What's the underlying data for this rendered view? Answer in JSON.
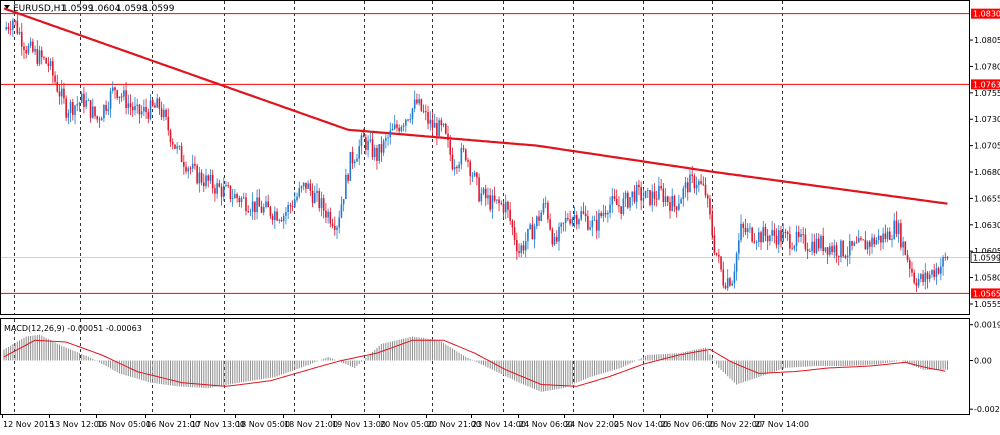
{
  "symbol_header": "EURUSD,H1",
  "ohlc": {
    "open": "1.0599",
    "high": "1.0604",
    "low": "1.0598",
    "close": "1.0599"
  },
  "colors": {
    "bull": "#1e7bd1",
    "bear": "#e0142a",
    "ma": "#e0141e",
    "level": "#ff0000",
    "level_label_bg": "#ff0000",
    "price_label_bg": "#ffffff",
    "grid": "#000000",
    "macd_hist": "#8c8c8c",
    "macd_signal": "#e0141e"
  },
  "chart_data": [
    {
      "type": "candlestick",
      "title": "EURUSD,H1",
      "ylim": [
        1.05455,
        1.0842
      ],
      "y_ticks": [
        "1.0805",
        "1.0780",
        "1.0755",
        "1.0730",
        "1.0705",
        "1.0680",
        "1.0655",
        "1.0630",
        "1.0605",
        "1.0580",
        "1.0555"
      ],
      "x_ticks": [
        "12 Nov 2015",
        "13 Nov 12:00",
        "16 Nov 05:00",
        "16 Nov 21:00",
        "17 Nov 13:00",
        "18 Nov 05:00",
        "18 Nov 21:00",
        "19 Nov 13:00",
        "20 Nov 05:00",
        "20 Nov 21:00",
        "23 Nov 14:00",
        "24 Nov 06:00",
        "24 Nov 22:00",
        "25 Nov 14:00",
        "26 Nov 06:00",
        "26 Nov 22:00",
        "27 Nov 14:00"
      ],
      "current_price": "1.0599",
      "levels": [
        {
          "value": 1.083,
          "label": "1.0830"
        },
        {
          "value": 1.0763,
          "label": "1.0763"
        },
        {
          "value": 1.0565,
          "label": "1.0565"
        }
      ],
      "path_keypoints": [
        [
          0,
          1.0815
        ],
        [
          4,
          1.0825
        ],
        [
          10,
          1.0798
        ],
        [
          20,
          1.0782
        ],
        [
          28,
          1.074
        ],
        [
          36,
          1.0748
        ],
        [
          42,
          1.073
        ],
        [
          50,
          1.076
        ],
        [
          60,
          1.0735
        ],
        [
          70,
          1.0742
        ],
        [
          78,
          1.07
        ],
        [
          86,
          1.0678
        ],
        [
          96,
          1.0665
        ],
        [
          106,
          1.0655
        ],
        [
          116,
          1.0645
        ],
        [
          126,
          1.064
        ],
        [
          136,
          1.0668
        ],
        [
          144,
          1.0645
        ],
        [
          150,
          1.0632
        ],
        [
          156,
          1.069
        ],
        [
          162,
          1.071
        ],
        [
          168,
          1.0695
        ],
        [
          174,
          1.0715
        ],
        [
          180,
          1.073
        ],
        [
          186,
          1.0745
        ],
        [
          192,
          1.0725
        ],
        [
          198,
          1.0718
        ],
        [
          202,
          1.069
        ],
        [
          208,
          1.0698
        ],
        [
          214,
          1.066
        ],
        [
          220,
          1.065
        ],
        [
          226,
          1.0648
        ],
        [
          232,
          1.0605
        ],
        [
          238,
          1.0625
        ],
        [
          244,
          1.065
        ],
        [
          248,
          1.061
        ],
        [
          254,
          1.0638
        ],
        [
          260,
          1.064
        ],
        [
          266,
          1.0628
        ],
        [
          272,
          1.065
        ],
        [
          278,
          1.0648
        ],
        [
          284,
          1.066
        ],
        [
          290,
          1.0655
        ],
        [
          296,
          1.066
        ],
        [
          302,
          1.0648
        ],
        [
          308,
          1.0668
        ],
        [
          312,
          1.0672
        ],
        [
          316,
          1.066
        ],
        [
          320,
          1.061
        ],
        [
          324,
          1.0578
        ],
        [
          328,
          1.058
        ],
        [
          332,
          1.0625
        ],
        [
          340,
          1.062
        ],
        [
          348,
          1.062
        ],
        [
          356,
          1.0615
        ],
        [
          362,
          1.0612
        ],
        [
          368,
          1.0612
        ],
        [
          374,
          1.0608
        ],
        [
          380,
          1.0605
        ],
        [
          386,
          1.061
        ],
        [
          392,
          1.0615
        ],
        [
          398,
          1.062
        ],
        [
          402,
          1.063
        ],
        [
          406,
          1.0605
        ],
        [
          410,
          1.058
        ],
        [
          414,
          1.0577
        ],
        [
          418,
          1.0585
        ],
        [
          422,
          1.0592
        ],
        [
          425,
          1.0599
        ]
      ],
      "ma_keypoints": [
        [
          0,
          1.0835
        ],
        [
          155,
          1.072
        ],
        [
          240,
          1.0705
        ],
        [
          320,
          1.068
        ],
        [
          425,
          1.065
        ]
      ]
    },
    {
      "type": "macd",
      "label": "MACD(12,26,9) -0.00051 -0.00063",
      "ylim": [
        -0.0029,
        0.00225
      ],
      "y_ticks": [
        "0.00194",
        "0.00",
        "-0.00264"
      ],
      "hist_keypoints": [
        [
          0,
          0.0006
        ],
        [
          10,
          0.0013
        ],
        [
          16,
          0.0014
        ],
        [
          26,
          0.0008
        ],
        [
          40,
          0.0001
        ],
        [
          52,
          -0.0007
        ],
        [
          66,
          -0.0012
        ],
        [
          78,
          -0.0014
        ],
        [
          92,
          -0.0015
        ],
        [
          106,
          -0.0012
        ],
        [
          122,
          -0.0009
        ],
        [
          138,
          -0.0002
        ],
        [
          146,
          0.0002
        ],
        [
          158,
          -0.0004
        ],
        [
          170,
          0.0009
        ],
        [
          184,
          0.0013
        ],
        [
          196,
          0.0011
        ],
        [
          208,
          0.0002
        ],
        [
          220,
          -0.0005
        ],
        [
          232,
          -0.0012
        ],
        [
          242,
          -0.0017
        ],
        [
          252,
          -0.0015
        ],
        [
          264,
          -0.0009
        ],
        [
          278,
          -0.0004
        ],
        [
          290,
          0.0003
        ],
        [
          304,
          0.0004
        ],
        [
          316,
          0.0007
        ],
        [
          322,
          -0.0004
        ],
        [
          330,
          -0.0013
        ],
        [
          340,
          -0.0009
        ],
        [
          352,
          -0.0004
        ],
        [
          366,
          -0.0003
        ],
        [
          380,
          -0.0003
        ],
        [
          394,
          -0.0002
        ],
        [
          404,
          0.0
        ],
        [
          414,
          -0.0005
        ],
        [
          425,
          -0.0005
        ]
      ],
      "signal_keypoints": [
        [
          0,
          0.0002
        ],
        [
          14,
          0.0011
        ],
        [
          28,
          0.001
        ],
        [
          44,
          0.0003
        ],
        [
          60,
          -0.0006
        ],
        [
          80,
          -0.0012
        ],
        [
          100,
          -0.0014
        ],
        [
          120,
          -0.0011
        ],
        [
          140,
          -0.0004
        ],
        [
          152,
          0.0
        ],
        [
          168,
          0.0004
        ],
        [
          184,
          0.0011
        ],
        [
          198,
          0.0011
        ],
        [
          212,
          0.0004
        ],
        [
          226,
          -0.0005
        ],
        [
          242,
          -0.0013
        ],
        [
          258,
          -0.0014
        ],
        [
          272,
          -0.0009
        ],
        [
          288,
          -0.0002
        ],
        [
          304,
          0.0003
        ],
        [
          318,
          0.0006
        ],
        [
          328,
          -0.0001
        ],
        [
          340,
          -0.0007
        ],
        [
          356,
          -0.0006
        ],
        [
          372,
          -0.0004
        ],
        [
          390,
          -0.0003
        ],
        [
          406,
          -0.0001
        ],
        [
          416,
          -0.0004
        ],
        [
          425,
          -0.0006
        ]
      ]
    }
  ]
}
